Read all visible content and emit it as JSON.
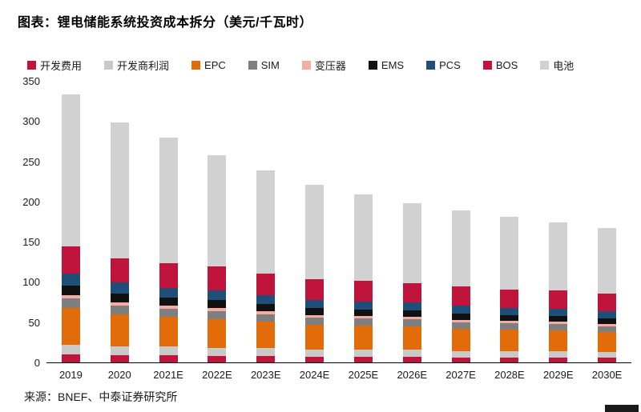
{
  "page": {
    "title": "图表：锂电储能系统投资成本拆分（美元/千瓦时）",
    "source": "来源：BNEF、中泰证券研究所"
  },
  "chart_data": {
    "type": "bar",
    "stacked": true,
    "title": "锂电储能系统投资成本拆分（美元/千瓦时）",
    "xlabel": "",
    "ylabel": "",
    "ylim": [
      0,
      350
    ],
    "yticks": [
      0,
      50,
      100,
      150,
      200,
      250,
      300,
      350
    ],
    "grid": false,
    "legend_position": "top",
    "categories": [
      "2019",
      "2020",
      "2021E",
      "2022E",
      "2023E",
      "2024E",
      "2025E",
      "2026E",
      "2027E",
      "2028E",
      "2029E",
      "2030E"
    ],
    "series": [
      {
        "name": "开发费用",
        "color": "#C0143C",
        "values": [
          10,
          9,
          9,
          8,
          8,
          7,
          7,
          7,
          6,
          6,
          6,
          6
        ]
      },
      {
        "name": "开发商利润",
        "color": "#C9C9C9",
        "values": [
          12,
          11,
          11,
          10,
          10,
          9,
          9,
          9,
          8,
          8,
          8,
          7
        ]
      },
      {
        "name": "EPC",
        "color": "#E26B0A",
        "values": [
          46,
          40,
          37,
          36,
          33,
          31,
          30,
          29,
          28,
          27,
          26,
          25
        ]
      },
      {
        "name": "SIM",
        "color": "#7F7F7F",
        "values": [
          12,
          11,
          10,
          10,
          9,
          9,
          9,
          9,
          8,
          8,
          8,
          7
        ]
      },
      {
        "name": "变压器",
        "color": "#F4ACA3",
        "values": [
          4,
          4,
          4,
          4,
          4,
          3,
          3,
          3,
          3,
          3,
          3,
          3
        ]
      },
      {
        "name": "EMS",
        "color": "#111111",
        "values": [
          12,
          11,
          10,
          10,
          9,
          9,
          8,
          8,
          8,
          7,
          7,
          7
        ]
      },
      {
        "name": "PCS",
        "color": "#1F4E79",
        "values": [
          14,
          13,
          12,
          12,
          11,
          10,
          10,
          10,
          10,
          9,
          9,
          9
        ]
      },
      {
        "name": "BOS",
        "color": "#C0143C",
        "values": [
          34,
          30,
          30,
          29,
          26,
          25,
          25,
          24,
          24,
          23,
          23,
          22
        ]
      },
      {
        "name": "电池",
        "color": "#D1D1D1",
        "values": [
          189,
          169,
          156,
          139,
          129,
          118,
          108,
          99,
          94,
          90,
          84,
          81
        ]
      }
    ],
    "totals": [
      333,
      298,
      279,
      258,
      239,
      221,
      209,
      198,
      189,
      181,
      174,
      167
    ]
  }
}
